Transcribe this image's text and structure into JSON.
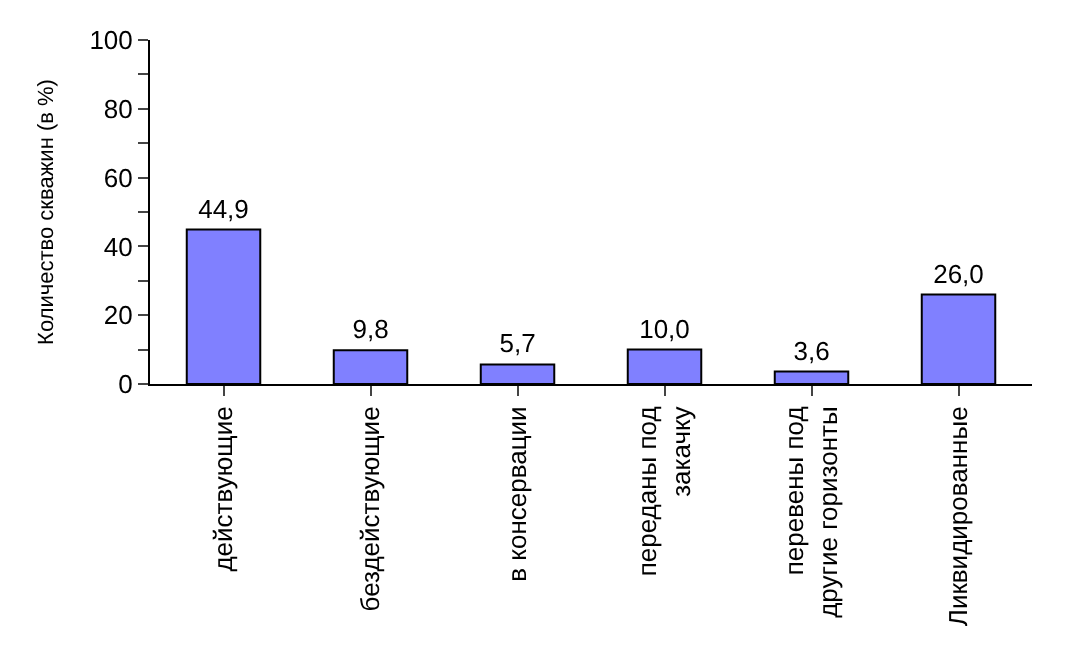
{
  "chart_data": {
    "type": "bar",
    "ylabel": "Количество скважин (в %)",
    "categories": [
      "действующие",
      "бездействующие",
      "в консервации",
      "переданы под закачку",
      "перевены под другие горизонты",
      "Ликвидированные"
    ],
    "values": [
      44.9,
      9.8,
      5.7,
      10.0,
      3.6,
      26.0
    ],
    "value_labels": [
      "44,9",
      "9,8",
      "5,7",
      "10,0",
      "3,6",
      "26,0"
    ],
    "color": "#8080ff",
    "ylim": [
      0,
      100
    ],
    "yticks": [
      0,
      {
        "value": 10,
        "label": null
      },
      20,
      {
        "value": 30,
        "label": null
      },
      40,
      {
        "value": 50,
        "label": null
      },
      60,
      {
        "value": 70,
        "label": null
      },
      80,
      {
        "value": 90,
        "label": null
      },
      100
    ]
  }
}
